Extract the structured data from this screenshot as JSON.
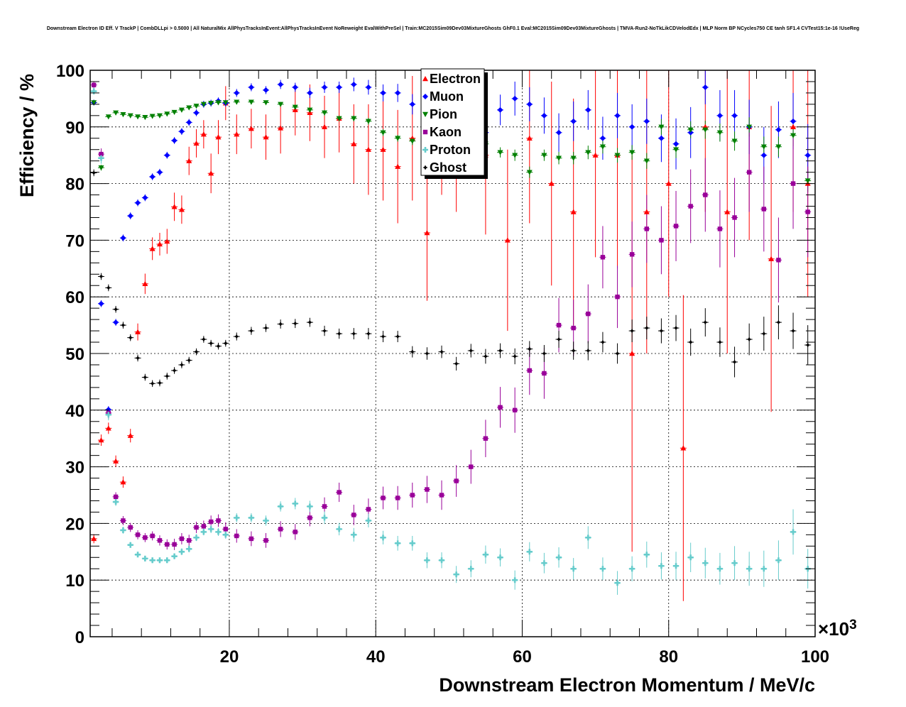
{
  "chart_data": {
    "type": "scatter",
    "title": "Downstream Electron ID Eff. V TrackP | CombDLLpi > 0.5000 | All NaturalMix AllPhysTracksInEvent:AllPhysTracksInEvent NoReweight EvalWithPreSel | Train:MC2015Sim09Dev03MixtureGhosts GhF0.1 Eval:MC2015Sim09Dev03MixtureGhosts | TMVA-Run2-NoTkLikCDVelodEdx | MLP Norm BP NCycles750 CE tanh SF1.4 CVTest15:1e-16 !UseReg",
    "xlabel": "Downstream Electron Momentum / MeV/c",
    "ylabel": "Efficiency / %",
    "x_multiplier_label": "×10",
    "x_multiplier_exponent": "3",
    "xlim": [
      1,
      100
    ],
    "ylim": [
      0,
      100
    ],
    "x_ticks": [
      "20",
      "40",
      "60",
      "80",
      "100"
    ],
    "y_ticks": [
      "0",
      "10",
      "20",
      "30",
      "40",
      "50",
      "60",
      "70",
      "80",
      "90",
      "100"
    ],
    "grid": true,
    "legend_position": "top-center",
    "series": [
      {
        "name": "Electron",
        "color": "#ff0000",
        "marker": "triangle-up",
        "x": [
          1.5,
          2.5,
          3.5,
          4.5,
          5.5,
          6.5,
          7.5,
          8.5,
          9.5,
          10.5,
          11.5,
          12.5,
          13.5,
          14.5,
          15.5,
          16.5,
          17.5,
          18.5,
          19.5,
          21,
          23,
          25,
          27,
          29,
          31,
          33,
          35,
          37,
          39,
          41,
          43,
          45,
          47,
          49,
          51,
          55,
          58,
          61,
          64,
          67,
          70,
          73,
          75,
          77,
          80,
          82,
          85,
          88,
          91,
          94,
          97,
          99
        ],
        "y": [
          17.3,
          34.7,
          36.8,
          31.0,
          27.3,
          35.5,
          53.8,
          62.3,
          68.5,
          69.3,
          69.8,
          75.9,
          75.4,
          84.0,
          87.1,
          88.7,
          81.8,
          88.2,
          94.2,
          88.7,
          89.7,
          88.2,
          89.8,
          93.0,
          92.5,
          90.0,
          91.5,
          87.0,
          86.0,
          86.0,
          83.0,
          88.0,
          71.3,
          90.0,
          88.0,
          85.0,
          70.0,
          88.0,
          80.0,
          75.0,
          85.0,
          85.0,
          50.0,
          75.0,
          80.0,
          33.3,
          90.0,
          75.0,
          90.0,
          66.7,
          90.0,
          80.0
        ],
        "err": [
          0.8,
          1.0,
          1.0,
          1.0,
          1.0,
          1.2,
          1.5,
          1.8,
          2.0,
          2.0,
          2.2,
          2.5,
          2.5,
          2.5,
          2.5,
          2.5,
          3.5,
          3.0,
          3.0,
          3.5,
          3.5,
          4.0,
          4.5,
          4.5,
          5.0,
          5.5,
          6.0,
          7.0,
          8.0,
          9.0,
          10.0,
          11.0,
          12.0,
          12.0,
          13.0,
          14.0,
          16.0,
          15.0,
          18.0,
          20.0,
          18.0,
          20.0,
          35.0,
          25.0,
          20.0,
          27.0,
          15.0,
          25.0,
          20.0,
          27.0,
          15.0,
          20.0
        ]
      },
      {
        "name": "Muon",
        "color": "#0000ff",
        "marker": "diamond",
        "x": [
          1.5,
          2.5,
          3.5,
          4.5,
          5.5,
          6.5,
          7.5,
          8.5,
          9.5,
          10.5,
          11.5,
          12.5,
          13.5,
          14.5,
          15.5,
          16.5,
          17.5,
          18.5,
          19.5,
          21,
          23,
          25,
          27,
          29,
          31,
          33,
          35,
          37,
          39,
          41,
          43,
          45,
          47,
          49,
          51,
          53,
          55,
          57,
          59,
          61,
          63,
          65,
          67,
          69,
          71,
          73,
          75,
          77,
          79,
          81,
          83,
          85,
          87,
          89,
          91,
          93,
          95,
          97,
          99
        ],
        "y": [
          94.3,
          58.8,
          40.1,
          55.5,
          70.4,
          74.3,
          76.6,
          77.5,
          81.2,
          82.0,
          85.0,
          87.6,
          89.2,
          90.8,
          92.5,
          94.0,
          94.2,
          94.6,
          94.2,
          96.0,
          97.0,
          96.5,
          97.5,
          97.0,
          96.0,
          97.0,
          97.0,
          97.5,
          97.0,
          96.0,
          96.0,
          94.0,
          96.0,
          95.0,
          93.0,
          92.0,
          89.0,
          93.0,
          95.0,
          94.0,
          92.0,
          89.0,
          91.0,
          93.0,
          88.0,
          92.0,
          90.0,
          91.0,
          88.0,
          87.0,
          89.0,
          97.0,
          92.0,
          92.0,
          90.0,
          85.0,
          89.5,
          91.0,
          85.0
        ],
        "err": [
          0.5,
          0.6,
          0.6,
          0.6,
          0.6,
          0.6,
          0.6,
          0.6,
          0.6,
          0.6,
          0.6,
          0.6,
          0.6,
          0.6,
          0.6,
          0.6,
          0.6,
          0.6,
          0.6,
          0.7,
          0.7,
          0.7,
          0.8,
          0.8,
          0.9,
          1.0,
          1.0,
          1.2,
          1.3,
          1.5,
          1.6,
          1.8,
          2.0,
          2.0,
          2.2,
          2.4,
          2.5,
          2.7,
          3.0,
          3.0,
          3.2,
          3.4,
          3.5,
          3.5,
          3.8,
          4.0,
          4.0,
          4.0,
          4.2,
          4.5,
          4.5,
          3.0,
          4.5,
          4.5,
          4.8,
          5.0,
          5.0,
          5.0,
          5.5
        ]
      },
      {
        "name": "Pion",
        "color": "#008000",
        "marker": "triangle-down",
        "x": [
          1.5,
          2.5,
          3.5,
          4.5,
          5.5,
          6.5,
          7.5,
          8.5,
          9.5,
          10.5,
          11.5,
          12.5,
          13.5,
          14.5,
          15.5,
          16.5,
          17.5,
          18.5,
          19.5,
          21,
          23,
          25,
          27,
          29,
          31,
          33,
          35,
          37,
          39,
          41,
          43,
          45,
          47,
          49,
          51,
          53,
          55,
          57,
          59,
          61,
          63,
          65,
          67,
          69,
          71,
          73,
          75,
          77,
          79,
          81,
          83,
          85,
          87,
          89,
          91,
          93,
          95,
          97,
          99
        ],
        "y": [
          94.3,
          82.8,
          91.8,
          92.5,
          92.2,
          92.0,
          91.8,
          91.7,
          91.9,
          92.0,
          92.3,
          92.6,
          93.0,
          93.4,
          93.7,
          94.0,
          94.2,
          94.3,
          94.3,
          94.4,
          94.4,
          94.3,
          94.0,
          93.5,
          93.0,
          92.5,
          91.5,
          91.5,
          91.0,
          89.0,
          88.0,
          87.5,
          87.5,
          87.5,
          87.0,
          87.5,
          87.0,
          85.5,
          85.0,
          82.0,
          85.0,
          84.5,
          84.5,
          85.5,
          86.5,
          85.0,
          85.5,
          84.0,
          90.0,
          86.0,
          89.5,
          89.5,
          89.0,
          87.5,
          90.0,
          86.5,
          86.5,
          88.5,
          80.5
        ],
        "err": [
          0.5,
          0.5,
          0.3,
          0.3,
          0.3,
          0.3,
          0.3,
          0.3,
          0.3,
          0.3,
          0.3,
          0.3,
          0.3,
          0.3,
          0.3,
          0.3,
          0.3,
          0.3,
          0.3,
          0.3,
          0.3,
          0.3,
          0.4,
          0.4,
          0.4,
          0.5,
          0.5,
          0.5,
          0.6,
          0.6,
          0.6,
          0.7,
          0.7,
          0.7,
          0.8,
          0.8,
          0.9,
          0.9,
          1.0,
          1.0,
          1.0,
          1.1,
          1.1,
          1.2,
          1.2,
          1.3,
          1.3,
          1.4,
          1.4,
          1.5,
          1.5,
          1.6,
          1.6,
          1.7,
          1.7,
          1.8,
          1.8,
          1.9,
          2.0
        ]
      },
      {
        "name": "Kaon",
        "color": "#990099",
        "marker": "square",
        "x": [
          1.5,
          2.5,
          3.5,
          4.5,
          5.5,
          6.5,
          7.5,
          8.5,
          9.5,
          10.5,
          11.5,
          12.5,
          13.5,
          14.5,
          15.5,
          16.5,
          17.5,
          18.5,
          19.5,
          21,
          23,
          25,
          27,
          29,
          31,
          33,
          35,
          37,
          39,
          41,
          43,
          45,
          47,
          49,
          51,
          53,
          55,
          57,
          59,
          61,
          63,
          65,
          67,
          69,
          71,
          73,
          75,
          77,
          79,
          81,
          83,
          85,
          87,
          89,
          91,
          93,
          95,
          97,
          99
        ],
        "y": [
          97.4,
          85.2,
          39.5,
          24.7,
          20.5,
          19.3,
          18.0,
          17.5,
          17.8,
          17.0,
          16.3,
          16.3,
          17.3,
          17.0,
          19.3,
          19.5,
          20.3,
          20.5,
          19.0,
          17.8,
          17.3,
          17.0,
          19.0,
          18.5,
          21.0,
          23.0,
          25.5,
          21.5,
          22.5,
          24.5,
          24.5,
          25.0,
          26.0,
          25.0,
          27.5,
          30.0,
          35.0,
          40.5,
          40.0,
          47.0,
          46.5,
          55.0,
          54.5,
          57.0,
          67.0,
          60.0,
          67.5,
          72.0,
          70.0,
          72.5,
          76.0,
          78.0,
          72.0,
          74.0,
          82.0,
          75.5,
          66.5,
          80.0,
          75.0
        ],
        "err": [
          0.6,
          1.0,
          1.0,
          0.8,
          0.8,
          0.8,
          0.8,
          0.8,
          0.8,
          0.9,
          0.9,
          1.0,
          1.0,
          1.0,
          1.0,
          1.0,
          1.1,
          1.1,
          1.2,
          1.2,
          1.3,
          1.3,
          1.4,
          1.4,
          1.5,
          1.6,
          1.7,
          1.8,
          1.9,
          2.0,
          2.1,
          2.2,
          2.4,
          2.6,
          2.8,
          3.0,
          3.3,
          3.6,
          4.0,
          4.3,
          4.5,
          4.8,
          5.0,
          5.2,
          5.5,
          5.5,
          5.8,
          6.0,
          6.0,
          6.2,
          6.5,
          6.5,
          6.8,
          7.0,
          7.0,
          7.5,
          7.5,
          8.0,
          8.0
        ]
      },
      {
        "name": "Proton",
        "color": "#66cccc",
        "marker": "cross",
        "x": [
          1.5,
          2.5,
          3.5,
          4.5,
          5.5,
          6.5,
          7.5,
          8.5,
          9.5,
          10.5,
          11.5,
          12.5,
          13.5,
          14.5,
          15.5,
          16.5,
          17.5,
          18.5,
          19.5,
          21,
          23,
          25,
          27,
          29,
          31,
          33,
          35,
          37,
          39,
          41,
          43,
          45,
          47,
          49,
          51,
          53,
          55,
          57,
          59,
          61,
          63,
          65,
          67,
          69,
          71,
          73,
          75,
          77,
          79,
          81,
          83,
          85,
          87,
          89,
          91,
          93,
          95,
          97,
          99
        ],
        "y": [
          96.3,
          84.5,
          39.2,
          23.8,
          18.8,
          16.2,
          14.5,
          13.8,
          13.5,
          13.5,
          13.5,
          14.2,
          15.0,
          15.5,
          17.5,
          18.5,
          19.0,
          18.5,
          18.0,
          21.0,
          21.0,
          20.5,
          23.0,
          23.5,
          23.0,
          21.0,
          19.0,
          18.0,
          20.5,
          17.5,
          16.5,
          16.5,
          13.5,
          13.5,
          11.0,
          12.0,
          14.5,
          14.0,
          10.0,
          15.0,
          13.0,
          14.0,
          12.0,
          17.5,
          12.0,
          9.5,
          12.0,
          14.5,
          12.5,
          12.5,
          14.0,
          13.0,
          12.0,
          13.0,
          12.0,
          12.0,
          13.5,
          18.5,
          12.0
        ],
        "err": [
          0.6,
          1.0,
          1.0,
          0.7,
          0.6,
          0.5,
          0.5,
          0.5,
          0.5,
          0.5,
          0.5,
          0.5,
          0.6,
          0.6,
          0.6,
          0.6,
          0.7,
          0.7,
          0.7,
          0.8,
          0.8,
          0.9,
          0.9,
          1.0,
          1.0,
          1.1,
          1.1,
          1.2,
          1.2,
          1.2,
          1.3,
          1.3,
          1.4,
          1.4,
          1.5,
          1.5,
          1.6,
          1.6,
          1.7,
          1.7,
          1.8,
          1.8,
          1.9,
          2.0,
          2.0,
          2.1,
          2.2,
          2.3,
          2.4,
          2.5,
          2.6,
          2.7,
          2.8,
          3.0,
          3.0,
          3.2,
          3.5,
          4.0,
          3.5
        ]
      },
      {
        "name": "Ghost",
        "color": "#000000",
        "marker": "star",
        "x": [
          1.5,
          2.5,
          3.5,
          4.5,
          5.5,
          6.5,
          7.5,
          8.5,
          9.5,
          10.5,
          11.5,
          12.5,
          13.5,
          14.5,
          15.5,
          16.5,
          17.5,
          18.5,
          19.5,
          21,
          23,
          25,
          27,
          29,
          31,
          33,
          35,
          37,
          39,
          41,
          43,
          45,
          47,
          49,
          51,
          53,
          55,
          57,
          59,
          61,
          63,
          65,
          67,
          69,
          71,
          73,
          75,
          77,
          79,
          81,
          83,
          85,
          87,
          89,
          91,
          93,
          95,
          97,
          99
        ],
        "y": [
          81.9,
          63.6,
          61.6,
          57.8,
          55.0,
          52.8,
          49.2,
          45.8,
          44.7,
          44.8,
          46.0,
          47.0,
          48.0,
          48.8,
          50.3,
          52.5,
          51.8,
          51.3,
          51.8,
          53.0,
          54.0,
          54.5,
          55.2,
          55.3,
          55.5,
          54.0,
          53.5,
          53.5,
          53.5,
          53.0,
          53.0,
          50.3,
          50.0,
          50.3,
          48.2,
          50.5,
          49.5,
          50.5,
          49.5,
          50.8,
          50.0,
          52.5,
          50.5,
          50.5,
          52.0,
          50.0,
          54.0,
          54.5,
          54.0,
          54.5,
          52.0,
          55.5,
          52.0,
          48.5,
          52.5,
          53.5,
          55.5,
          54.0,
          51.5
        ],
        "err": [
          0.6,
          0.6,
          0.6,
          0.6,
          0.6,
          0.6,
          0.6,
          0.6,
          0.6,
          0.6,
          0.6,
          0.6,
          0.6,
          0.6,
          0.6,
          0.6,
          0.6,
          0.6,
          0.6,
          0.7,
          0.7,
          0.7,
          0.8,
          0.8,
          0.8,
          0.9,
          0.9,
          1.0,
          1.0,
          1.0,
          1.0,
          1.0,
          1.1,
          1.1,
          1.2,
          1.2,
          1.3,
          1.3,
          1.4,
          1.4,
          1.5,
          1.5,
          1.6,
          1.7,
          1.8,
          1.8,
          2.0,
          2.0,
          2.2,
          2.3,
          2.4,
          2.5,
          2.6,
          2.7,
          2.8,
          3.0,
          3.0,
          3.2,
          3.5
        ]
      }
    ]
  }
}
